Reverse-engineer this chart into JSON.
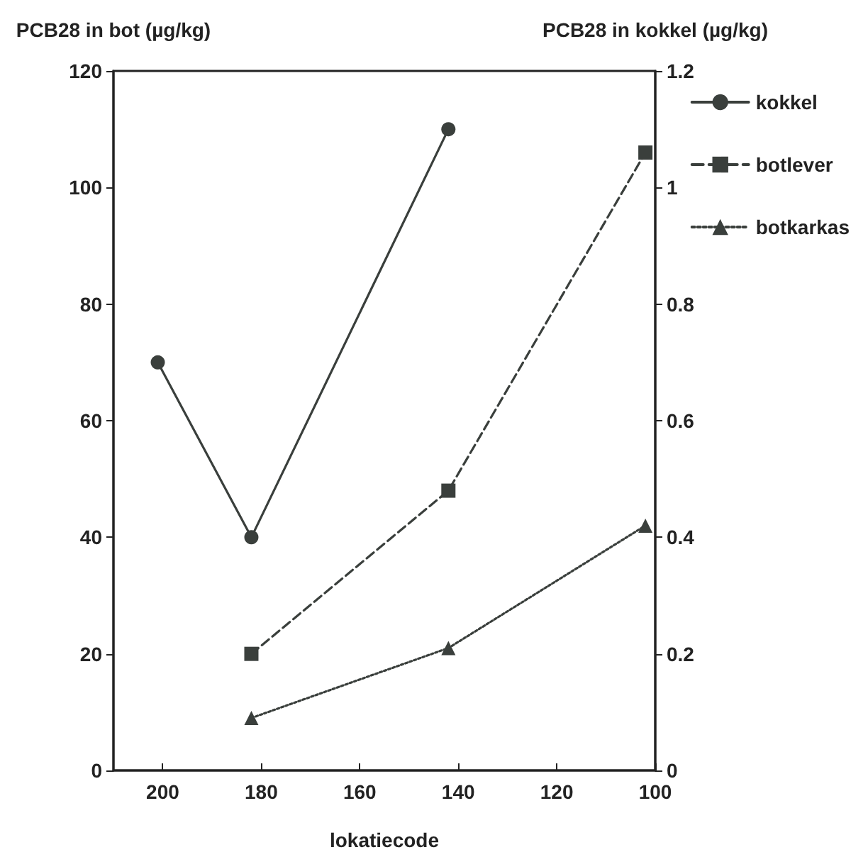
{
  "chart_data": {
    "type": "line",
    "xlabel": "lokatiecode",
    "ylabel": "PCB28 in bot (µg/kg)",
    "y2label": "PCB28 in kokkel (µg/kg)",
    "xlim": [
      210,
      100
    ],
    "xticks": [
      200,
      180,
      160,
      140,
      120,
      100
    ],
    "ylim": [
      0,
      120
    ],
    "yticks": [
      0,
      20,
      40,
      60,
      80,
      100,
      120
    ],
    "y2lim": [
      0,
      1.2
    ],
    "y2ticks": [
      0,
      0.2,
      0.4,
      0.6,
      0.8,
      1,
      1.2
    ],
    "grid": false,
    "legend": "right",
    "series": [
      {
        "name": "kokkel",
        "color": "#3a3f3c",
        "axis": "y2",
        "marker": "circle",
        "line_style": "solid",
        "x": [
          201,
          182,
          142
        ],
        "values": [
          0.7,
          0.4,
          1.1
        ]
      },
      {
        "name": "botlever",
        "color": "#3a3f3c",
        "marker": "square",
        "line_style": "dashed",
        "x": [
          182,
          142,
          102
        ],
        "values": [
          20,
          48,
          106
        ]
      },
      {
        "name": "botkarkas",
        "color": "#3a3f3c",
        "marker": "triangle",
        "line_style": "dotted",
        "x": [
          182,
          142,
          102
        ],
        "values": [
          9,
          21,
          42
        ]
      }
    ]
  }
}
